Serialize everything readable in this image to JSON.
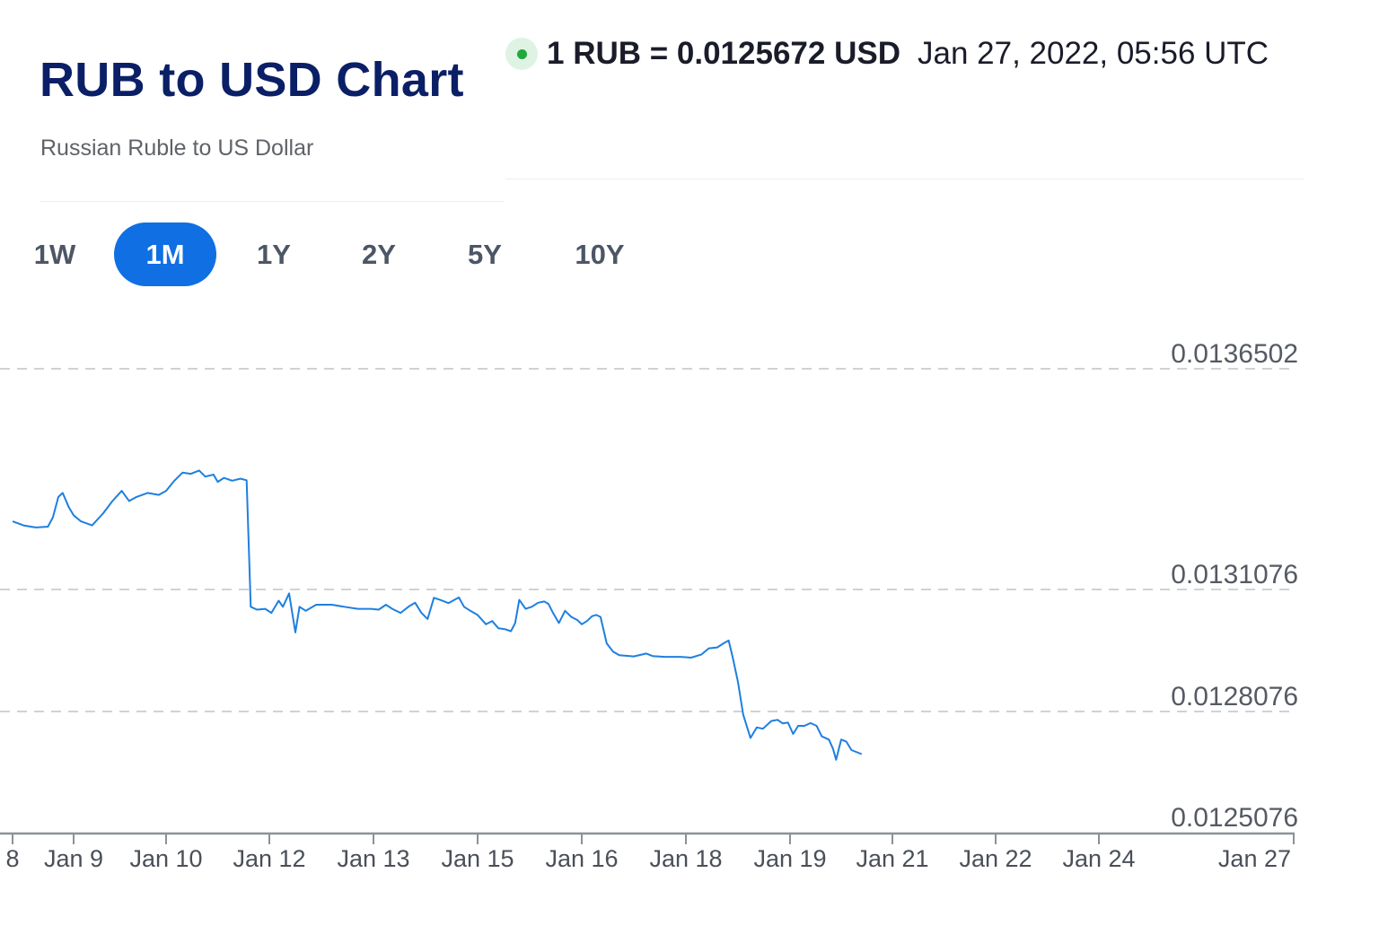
{
  "header": {
    "title": "RUB to USD Chart",
    "subtitle": "Russian Ruble to US Dollar"
  },
  "rate": {
    "text": "1 RUB = 0.0125672 USD",
    "timestamp": "Jan 27, 2022, 05:56 UTC",
    "live_indicator_color": "#1faa3c"
  },
  "range_tabs": [
    {
      "label": "1W",
      "active": false
    },
    {
      "label": "1M",
      "active": true
    },
    {
      "label": "1Y",
      "active": false
    },
    {
      "label": "2Y",
      "active": false
    },
    {
      "label": "5Y",
      "active": false
    },
    {
      "label": "10Y",
      "active": false
    }
  ],
  "colors": {
    "accent": "#0f6fe3",
    "title": "#0b1f66",
    "line": "#1e7fe0"
  },
  "chart_data": {
    "type": "line",
    "title": "",
    "xlabel": "",
    "ylabel": "",
    "grid": true,
    "y_axis_position": "right",
    "y_ticks": [
      "0.0136502",
      "0.0131076",
      "0.0128076",
      "0.0125076"
    ],
    "x_ticks": [
      "8",
      "Jan 9",
      "Jan 10",
      "Jan 12",
      "Jan 13",
      "Jan 15",
      "Jan 16",
      "Jan 18",
      "Jan 19",
      "Jan 21",
      "Jan 22",
      "Jan 24",
      "Jan 27"
    ],
    "series": [
      {
        "points": [
          [
            0,
            0.013275
          ],
          [
            0.18,
            0.013265
          ],
          [
            0.38,
            0.01326
          ],
          [
            0.58,
            0.013262
          ],
          [
            0.66,
            0.013285
          ],
          [
            0.75,
            0.013335
          ],
          [
            0.82,
            0.013345
          ],
          [
            0.92,
            0.01331
          ],
          [
            1.0,
            0.01329
          ],
          [
            1.08,
            0.013275
          ],
          [
            1.2,
            0.013265
          ],
          [
            1.32,
            0.013295
          ],
          [
            1.42,
            0.013325
          ],
          [
            1.52,
            0.01335
          ],
          [
            1.6,
            0.013325
          ],
          [
            1.68,
            0.013335
          ],
          [
            1.8,
            0.013345
          ],
          [
            1.92,
            0.01334
          ],
          [
            2.0,
            0.01335
          ],
          [
            2.08,
            0.013375
          ],
          [
            2.16,
            0.013395
          ],
          [
            2.24,
            0.013392
          ],
          [
            2.32,
            0.0134
          ],
          [
            2.38,
            0.013385
          ],
          [
            2.46,
            0.01339
          ],
          [
            2.5,
            0.013372
          ],
          [
            2.56,
            0.013382
          ],
          [
            2.64,
            0.013375
          ],
          [
            2.72,
            0.01338
          ],
          [
            2.78,
            0.013376
          ],
          [
            2.82,
            0.013065
          ],
          [
            2.88,
            0.013058
          ],
          [
            2.96,
            0.01306
          ],
          [
            3.02,
            0.01305
          ],
          [
            3.09,
            0.01308
          ],
          [
            3.13,
            0.013065
          ],
          [
            3.19,
            0.013098
          ],
          [
            3.25,
            0.013002
          ],
          [
            3.29,
            0.013065
          ],
          [
            3.35,
            0.013055
          ],
          [
            3.45,
            0.01307
          ],
          [
            3.6,
            0.01307
          ],
          [
            3.72,
            0.013065
          ],
          [
            3.85,
            0.01306
          ],
          [
            3.98,
            0.01306
          ],
          [
            4.05,
            0.013058
          ],
          [
            4.12,
            0.01307
          ],
          [
            4.18,
            0.01306
          ],
          [
            4.26,
            0.01305
          ],
          [
            4.34,
            0.013066
          ],
          [
            4.4,
            0.013075
          ],
          [
            4.46,
            0.01305
          ],
          [
            4.52,
            0.013035
          ],
          [
            4.58,
            0.013087
          ],
          [
            4.64,
            0.013082
          ],
          [
            4.72,
            0.013074
          ],
          [
            4.82,
            0.013088
          ],
          [
            4.87,
            0.013065
          ],
          [
            4.93,
            0.013055
          ],
          [
            5.0,
            0.013045
          ],
          [
            5.08,
            0.013022
          ],
          [
            5.14,
            0.01303
          ],
          [
            5.2,
            0.013012
          ],
          [
            5.26,
            0.01301
          ],
          [
            5.32,
            0.013005
          ],
          [
            5.36,
            0.013025
          ],
          [
            5.4,
            0.013082
          ],
          [
            5.46,
            0.01306
          ],
          [
            5.52,
            0.013065
          ],
          [
            5.58,
            0.013075
          ],
          [
            5.64,
            0.013078
          ],
          [
            5.68,
            0.013072
          ],
          [
            5.72,
            0.013052
          ],
          [
            5.78,
            0.013025
          ],
          [
            5.84,
            0.013055
          ],
          [
            5.9,
            0.01304
          ],
          [
            5.96,
            0.013032
          ],
          [
            6.0,
            0.013022
          ],
          [
            6.05,
            0.01303
          ],
          [
            6.1,
            0.013042
          ],
          [
            6.14,
            0.013045
          ],
          [
            6.18,
            0.01304
          ],
          [
            6.24,
            0.012975
          ],
          [
            6.3,
            0.012955
          ],
          [
            6.36,
            0.012946
          ],
          [
            6.5,
            0.012943
          ],
          [
            6.62,
            0.01295
          ],
          [
            6.68,
            0.012944
          ],
          [
            6.8,
            0.012942
          ],
          [
            6.95,
            0.012942
          ],
          [
            7.05,
            0.01294
          ],
          [
            7.15,
            0.012948
          ],
          [
            7.22,
            0.012963
          ],
          [
            7.3,
            0.012965
          ],
          [
            7.36,
            0.012975
          ],
          [
            7.41,
            0.012982
          ],
          [
            7.45,
            0.01294
          ],
          [
            7.5,
            0.01288
          ],
          [
            7.55,
            0.0128
          ],
          [
            7.62,
            0.012742
          ],
          [
            7.68,
            0.012768
          ],
          [
            7.74,
            0.012765
          ],
          [
            7.82,
            0.012784
          ],
          [
            7.88,
            0.012787
          ],
          [
            7.93,
            0.012778
          ],
          [
            7.98,
            0.01278
          ],
          [
            8.03,
            0.012752
          ],
          [
            8.08,
            0.012772
          ],
          [
            8.14,
            0.012772
          ],
          [
            8.2,
            0.012779
          ],
          [
            8.26,
            0.012772
          ],
          [
            8.31,
            0.012746
          ],
          [
            8.38,
            0.012738
          ],
          [
            8.42,
            0.012715
          ],
          [
            8.45,
            0.012688
          ],
          [
            8.5,
            0.012738
          ],
          [
            8.55,
            0.012733
          ],
          [
            8.6,
            0.012712
          ],
          [
            8.7,
            0.012702
          ]
        ]
      }
    ]
  }
}
